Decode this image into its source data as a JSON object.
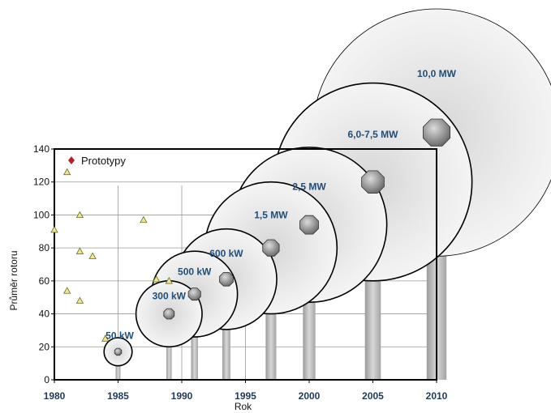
{
  "chart_data": {
    "type": "scatter",
    "xlabel": "Rok",
    "ylabel": "Průměr rotoru",
    "xlim": [
      1980,
      2010
    ],
    "ylim": [
      0,
      140
    ],
    "x_ticks": [
      1980,
      1985,
      1990,
      1995,
      2000,
      2005,
      2010
    ],
    "y_ticks": [
      0,
      20,
      40,
      60,
      80,
      100,
      120,
      140
    ],
    "grid": true,
    "legend": [
      {
        "name": "Prototypy",
        "marker": "diamond",
        "color": "#b22222",
        "position": "top-left"
      }
    ],
    "turbines": [
      {
        "label": "50 kW",
        "year": 1985,
        "diameter": 17
      },
      {
        "label": "300 kW",
        "year": 1989,
        "diameter": 40
      },
      {
        "label": "500 kW",
        "year": 1991,
        "diameter": 52
      },
      {
        "label": "600 kW",
        "year": 1993.5,
        "diameter": 61
      },
      {
        "label": "1,5 MW",
        "year": 1997,
        "diameter": 80
      },
      {
        "label": "2,5 MW",
        "year": 2000,
        "diameter": 94
      },
      {
        "label": "6,0-7,5 MW",
        "year": 2005,
        "diameter": 120
      },
      {
        "label": "10,0 MW",
        "year": 2010,
        "diameter": 150
      }
    ],
    "prototypes": [
      {
        "year": 1980,
        "diameter": 91
      },
      {
        "year": 1981,
        "diameter": 126
      },
      {
        "year": 1981,
        "diameter": 54
      },
      {
        "year": 1982,
        "diameter": 100
      },
      {
        "year": 1982,
        "diameter": 78
      },
      {
        "year": 1982,
        "diameter": 48
      },
      {
        "year": 1983,
        "diameter": 75
      },
      {
        "year": 1984,
        "diameter": 25
      },
      {
        "year": 1987,
        "diameter": 97
      },
      {
        "year": 1988,
        "diameter": 61
      },
      {
        "year": 1989,
        "diameter": 60
      }
    ]
  },
  "colors": {
    "axis": "#000000",
    "grid": "#999999",
    "bubble_fill": "#e6e6e6",
    "bubble_stroke": "#000000",
    "hub": "#8c8c8c",
    "tower": "#b3b3b3",
    "prototype_fill": "#f0e68c",
    "prototype_stroke": "#6b6b2a",
    "label": "#1f4e79"
  }
}
